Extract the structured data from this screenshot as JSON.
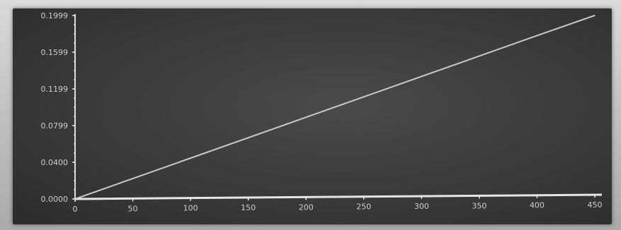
{
  "chart_data": {
    "type": "line",
    "title": "",
    "xlabel": "",
    "ylabel": "",
    "xlim": [
      0,
      450
    ],
    "ylim": [
      0,
      0.1999
    ],
    "x_ticks": [
      "0",
      "50",
      "100",
      "150",
      "200",
      "250",
      "300",
      "350",
      "400",
      "450"
    ],
    "y_ticks": [
      "0.0000",
      "0.0400",
      "0.0799",
      "0.1199",
      "0.1599",
      "0.1999"
    ],
    "grid": false,
    "legend": "none",
    "series": [
      {
        "x": [
          0,
          100,
          200,
          300,
          400,
          450
        ],
        "values": [
          0.0,
          0.0445,
          0.089,
          0.1335,
          0.178,
          0.2
        ]
      }
    ],
    "colors": {
      "line": "#d8d8d8",
      "axis": "#f0f0f0",
      "background": "#3a3a3a"
    }
  }
}
